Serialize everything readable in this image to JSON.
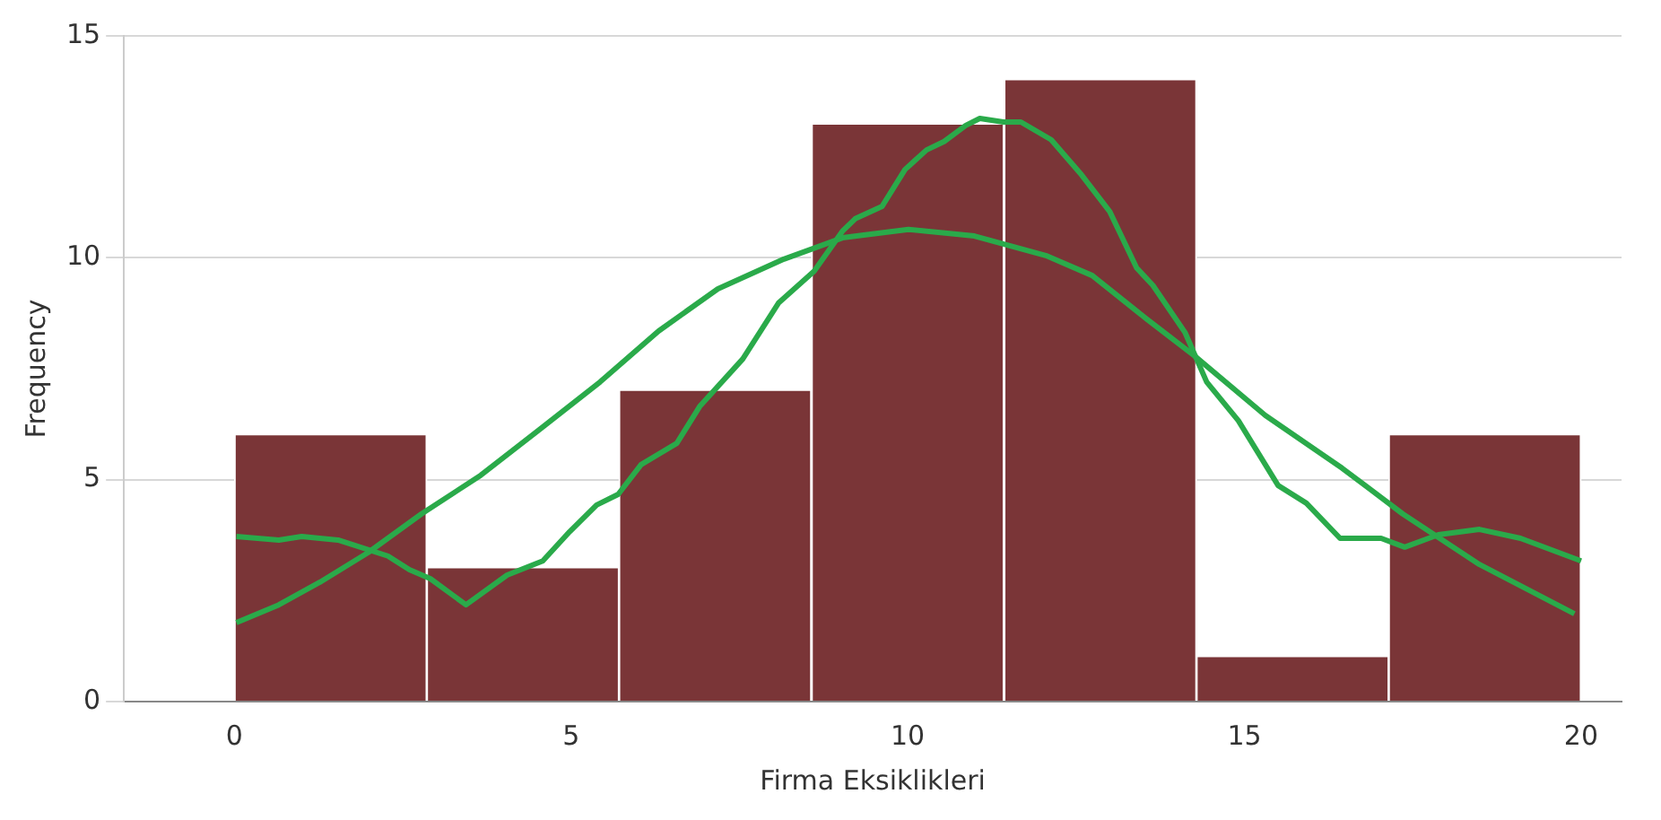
{
  "chart_data": {
    "type": "histogram",
    "xlabel": "Firma Eksiklikleri",
    "ylabel": "Frequency",
    "bins": [
      0,
      2.86,
      5.71,
      8.57,
      11.43,
      14.29,
      17.14,
      20
    ],
    "values": [
      6,
      3,
      7,
      13,
      14,
      1,
      6
    ],
    "color": "#7a3537",
    "series": [
      {
        "type": "line",
        "color": "#2aaa4a",
        "x": [
          0.03,
          0.66,
          1.0,
          1.54,
          2.28,
          2.6,
          2.91,
          3.44,
          4.05,
          4.58,
          4.98,
          5.38,
          5.7,
          6.04,
          6.57,
          6.91,
          7.55,
          8.08,
          8.61,
          9.03,
          9.22,
          9.62,
          9.96,
          10.28,
          10.54,
          10.86,
          11.07,
          11.42,
          11.68,
          12.13,
          12.58,
          13.0,
          13.4,
          13.64,
          14.12,
          14.44,
          14.91,
          15.5,
          15.92,
          16.42,
          17.03,
          17.38,
          17.88,
          18.49,
          19.1,
          20.0
        ],
        "values": [
          3.72,
          3.64,
          3.72,
          3.64,
          3.28,
          2.97,
          2.77,
          2.18,
          2.85,
          3.17,
          3.83,
          4.43,
          4.67,
          5.34,
          5.82,
          6.65,
          7.72,
          8.98,
          9.7,
          10.6,
          10.88,
          11.16,
          11.99,
          12.43,
          12.62,
          12.98,
          13.14,
          13.06,
          13.06,
          12.66,
          11.87,
          11.04,
          9.77,
          9.38,
          8.31,
          7.2,
          6.33,
          4.87,
          4.47,
          3.68,
          3.68,
          3.48,
          3.76,
          3.88,
          3.68,
          3.17
        ]
      },
      {
        "type": "line",
        "color": "#2aaa4a",
        "x": [
          0.03,
          0.66,
          1.27,
          1.99,
          2.78,
          3.66,
          4.53,
          5.43,
          6.3,
          7.18,
          8.16,
          9.03,
          10.01,
          10.99,
          12.05,
          12.74,
          13.54,
          14.25,
          15.31,
          16.45,
          17.35,
          18.49,
          19.9
        ],
        "values": [
          1.78,
          2.18,
          2.69,
          3.36,
          4.23,
          5.1,
          6.13,
          7.2,
          8.35,
          9.3,
          9.97,
          10.45,
          10.64,
          10.49,
          10.05,
          9.6,
          8.63,
          7.8,
          6.45,
          5.26,
          4.23,
          3.09,
          1.98
        ]
      }
    ],
    "xlim": [
      -1.64,
      20.6
    ],
    "xticks": [
      0,
      5,
      10,
      15,
      20
    ],
    "ylim": [
      0,
      15
    ],
    "yticks": [
      0,
      5,
      10,
      15
    ],
    "grid": "y",
    "legend": false
  }
}
